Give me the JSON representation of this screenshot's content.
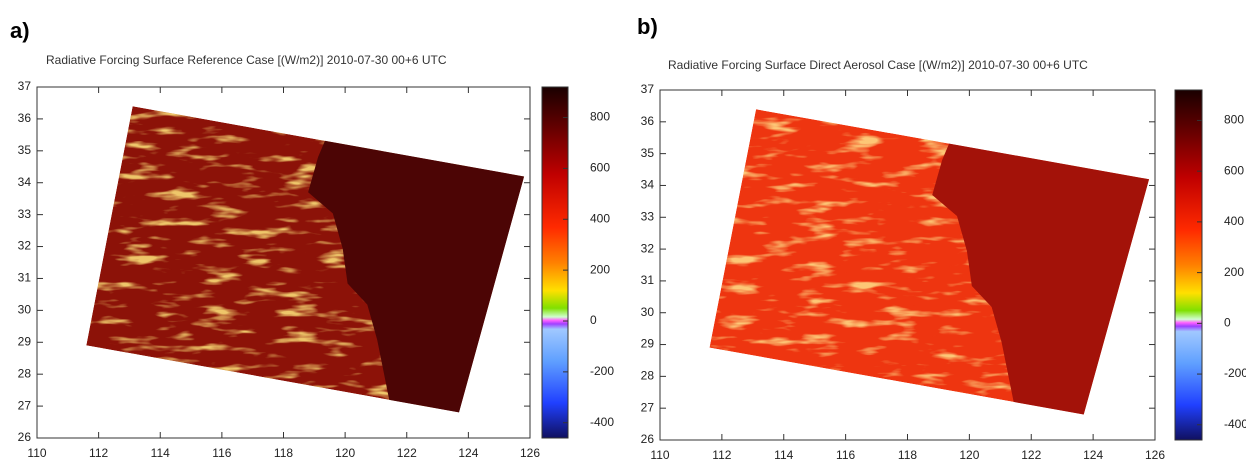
{
  "chart_data": [
    {
      "type": "heatmap",
      "panel_label": "a)",
      "title": "Radiative Forcing Surface Reference Case [(W/m2)]  2010-07-30 00+6 UTC",
      "xlim": [
        110,
        126
      ],
      "xticks": [
        110,
        112,
        114,
        116,
        118,
        120,
        122,
        124,
        126
      ],
      "ylim": [
        26,
        37
      ],
      "yticks": [
        26,
        27,
        28,
        29,
        30,
        31,
        32,
        33,
        34,
        35,
        36,
        37
      ],
      "colorbar": {
        "clim": [
          -460,
          920
        ],
        "ticks": [
          -400,
          -200,
          0,
          200,
          400,
          600,
          800
        ]
      }
    },
    {
      "type": "heatmap",
      "panel_label": "b)",
      "title": "Radiative Forcing Surface Direct Aerosol Case [(W/m2)]  2010-07-30 00+6 UTC",
      "xlim": [
        110,
        126
      ],
      "xticks": [
        110,
        112,
        114,
        116,
        118,
        120,
        122,
        124,
        126
      ],
      "ylim": [
        26,
        37
      ],
      "yticks": [
        26,
        27,
        28,
        29,
        30,
        31,
        32,
        33,
        34,
        35,
        36,
        37
      ],
      "colorbar": {
        "clim": [
          -460,
          920
        ],
        "ticks": [
          -400,
          -200,
          0,
          200,
          400,
          600,
          800
        ]
      }
    }
  ]
}
